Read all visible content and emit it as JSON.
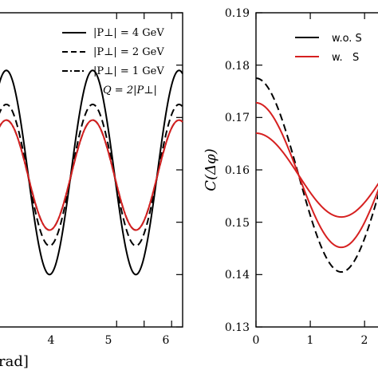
{
  "chart_data": [
    {
      "type": "line",
      "xlabel": "rad]",
      "ylabel": "",
      "xlim": [
        -0.3,
        6.4
      ],
      "ylim": [
        0.13,
        0.19
      ],
      "x_ticks": [
        "4",
        "5",
        "6"
      ],
      "legend_position": "top-right",
      "legend": {
        "entries": [
          "|P⊥| = 4 GeV",
          "|P⊥| = 2 GeV",
          "|P⊥| = 1 GeV"
        ],
        "note": "Q = 2|P⊥|"
      },
      "series": [
        {
          "name": "|P⊥| = 4 GeV",
          "color": "#000000",
          "dash": "solid",
          "mean": 0.1595,
          "amp": 0.0195
        },
        {
          "name": "|P⊥| = 2 GeV",
          "color": "#000000",
          "dash": "dash",
          "mean": 0.159,
          "amp": 0.0135
        },
        {
          "name": "|P⊥| = 1 GeV",
          "color": "#000000",
          "dash": "dashdot",
          "mean": 0.159,
          "amp": 0.0105
        },
        {
          "name": "",
          "color": "#d62020",
          "dash": "solid",
          "mean": 0.159,
          "amp": 0.0105
        }
      ]
    },
    {
      "type": "line",
      "xlabel": "",
      "ylabel": "C(Δφ)",
      "xlim": [
        0,
        2.35
      ],
      "ylim": [
        0.13,
        0.19
      ],
      "y_ticks": [
        "0.13",
        "0.14",
        "0.15",
        "0.16",
        "0.17",
        "0.18",
        "0.19"
      ],
      "x_ticks": [
        "0",
        "1",
        "2"
      ],
      "legend_position": "top-right",
      "legend": {
        "entries": [
          "w.o. S",
          "w.   S"
        ]
      },
      "series": [
        {
          "name": "w.o. S",
          "color": "#000000",
          "dash": "dash",
          "mean": 0.159,
          "amp": 0.0185
        },
        {
          "name": "w.   S",
          "color": "#d62020",
          "dash": "solid",
          "mean": 0.159,
          "amp": 0.0138
        },
        {
          "name": "w.   S",
          "color": "#d62020",
          "dash": "solid",
          "mean": 0.159,
          "amp": 0.008
        }
      ]
    }
  ]
}
